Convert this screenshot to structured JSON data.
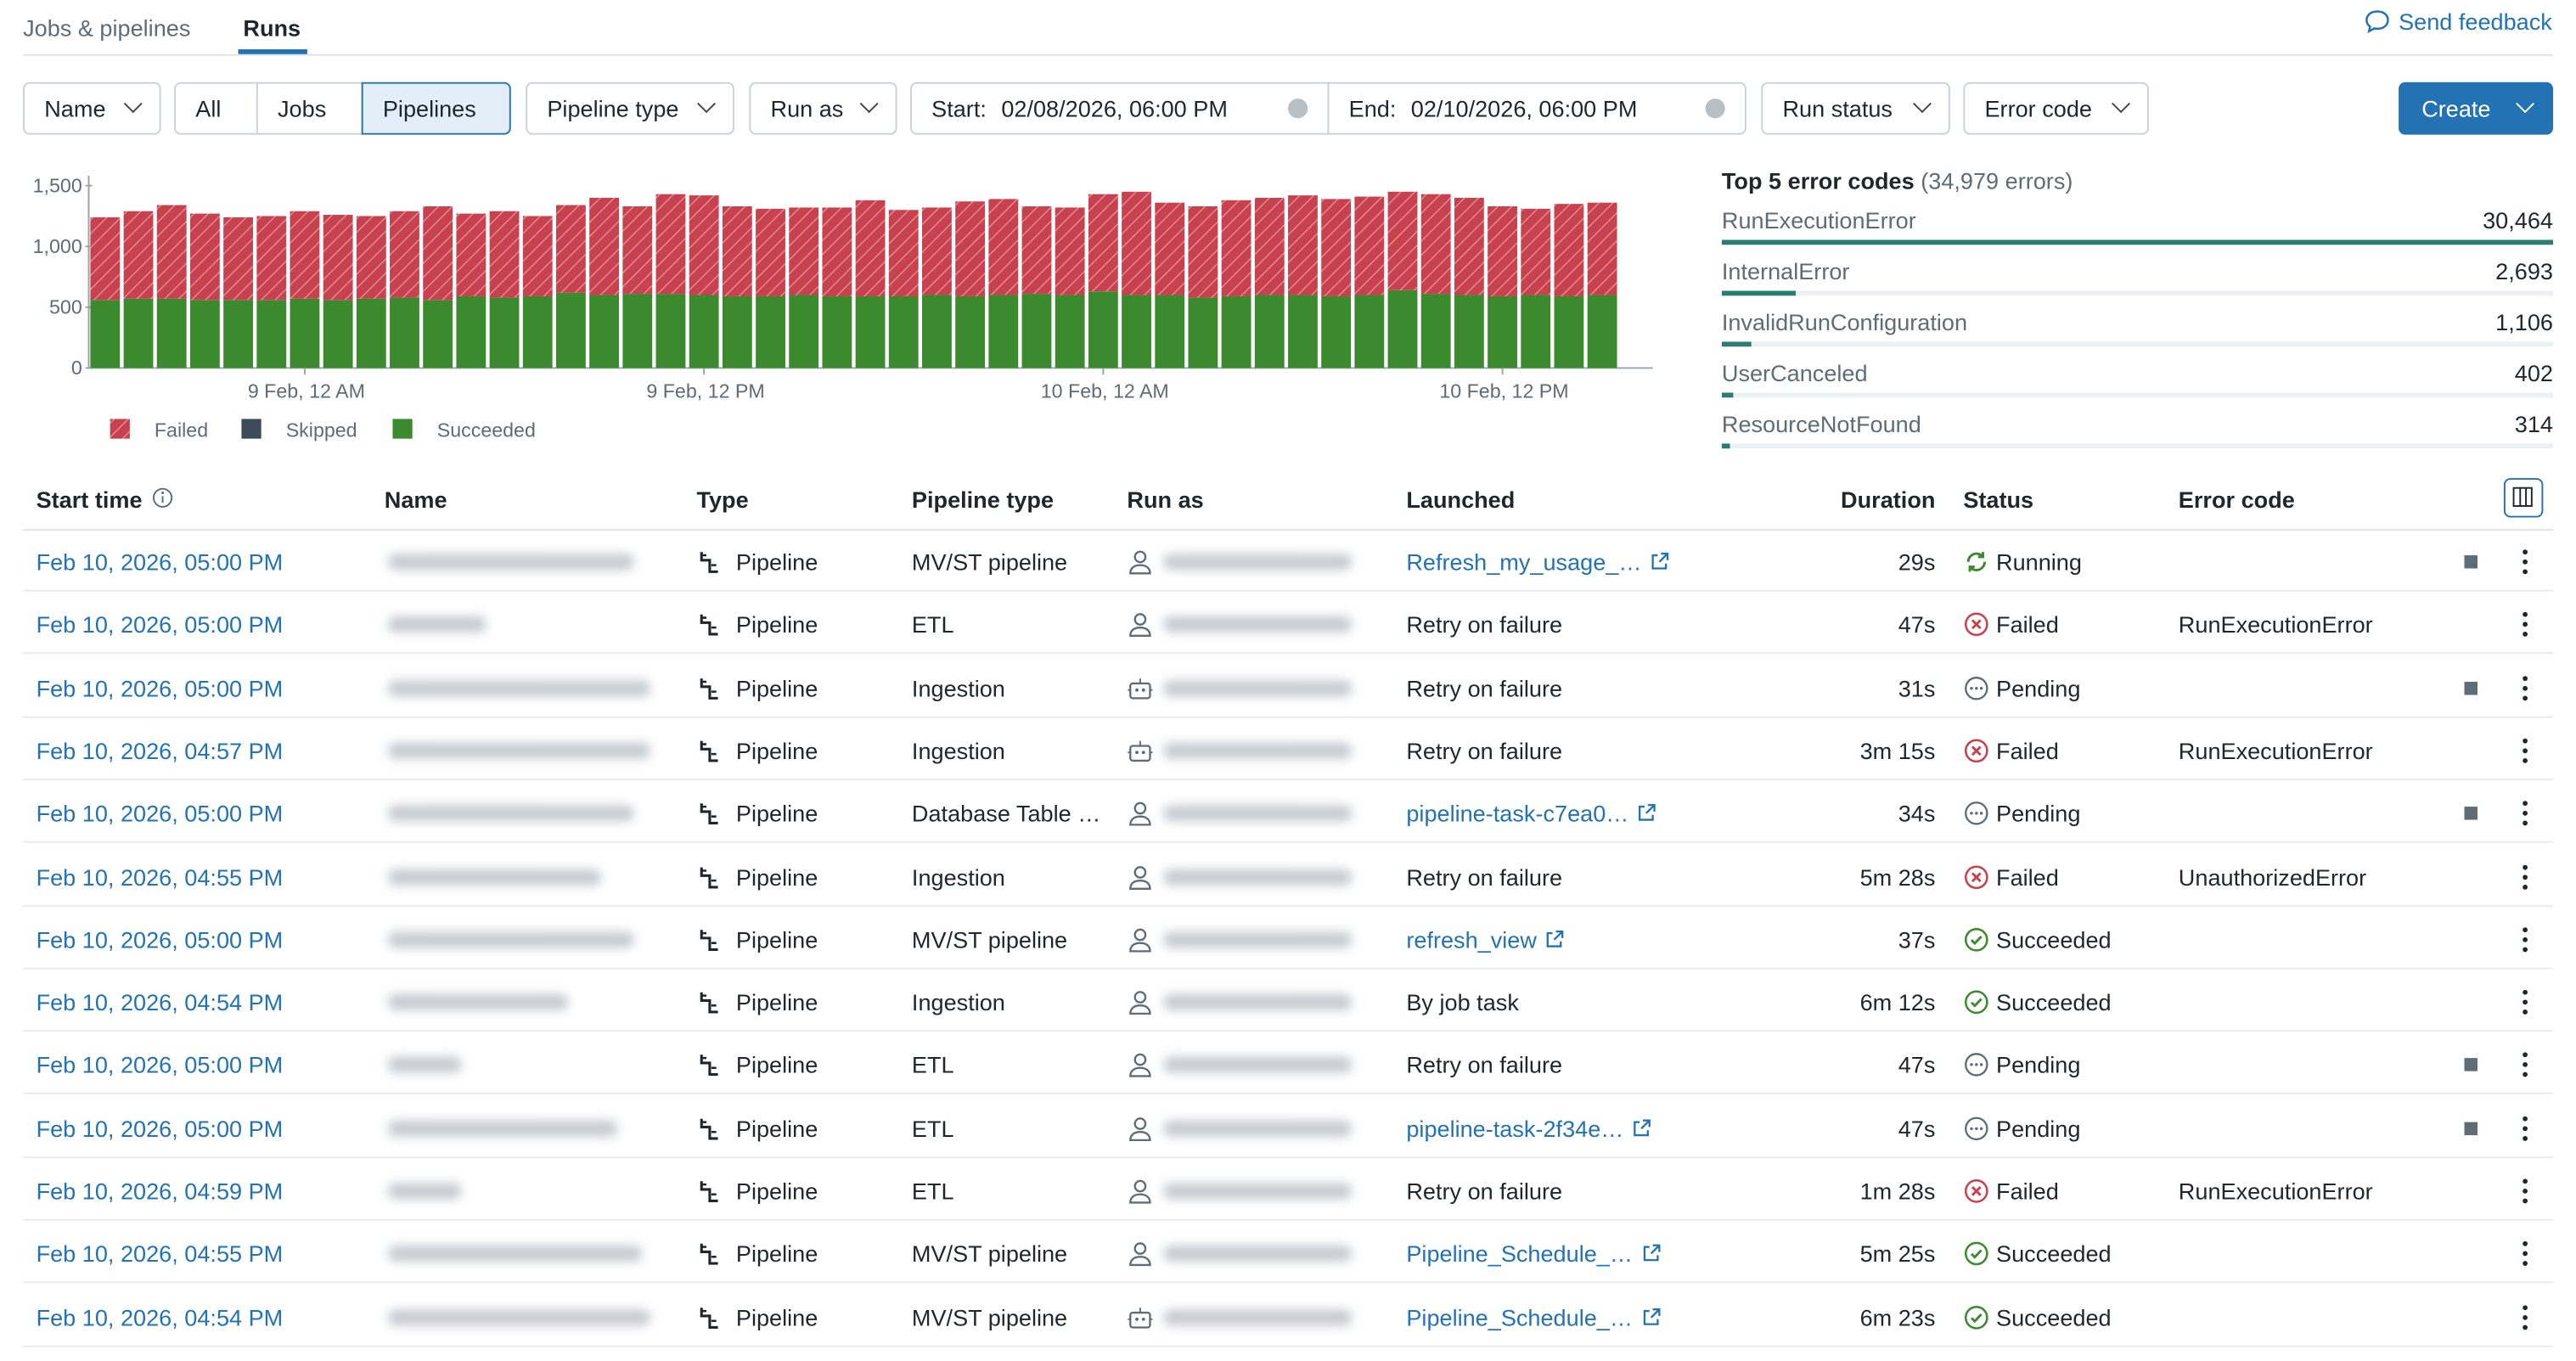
{
  "tabs": [
    "Jobs & pipelines",
    "Runs"
  ],
  "feedback": "Send feedback",
  "filters": {
    "name": "Name",
    "kinds": [
      "All",
      "Jobs",
      "Pipelines"
    ],
    "pipeline_type": "Pipeline type",
    "run_as": "Run as",
    "start_label": "Start:",
    "start_value": "02/08/2026, 06:00 PM",
    "end_label": "End:",
    "end_value": "02/10/2026, 06:00 PM",
    "run_status": "Run status",
    "error_code": "Error code",
    "create": "Create"
  },
  "chart_data": {
    "type": "stacked_bar",
    "categories": [
      null,
      null,
      null,
      null,
      null,
      null,
      "9 Feb, 12 AM",
      null,
      null,
      null,
      null,
      null,
      null,
      null,
      null,
      null,
      null,
      null,
      "9 Feb, 12 PM",
      null,
      null,
      null,
      null,
      null,
      null,
      null,
      null,
      null,
      null,
      null,
      "10 Feb, 12 AM",
      null,
      null,
      null,
      null,
      null,
      null,
      null,
      null,
      null,
      null,
      null,
      "10 Feb, 12 PM",
      null,
      null,
      null
    ],
    "series": [
      {
        "name": "Succeeded",
        "color": "#3c8a2e",
        "hatched": false,
        "values": [
          560,
          570,
          570,
          560,
          560,
          560,
          570,
          560,
          570,
          580,
          560,
          590,
          580,
          590,
          620,
          600,
          610,
          610,
          600,
          590,
          590,
          600,
          590,
          590,
          590,
          600,
          590,
          600,
          610,
          600,
          630,
          600,
          600,
          580,
          590,
          600,
          600,
          590,
          600,
          640,
          610,
          600,
          590,
          600,
          590,
          600
        ]
      },
      {
        "name": "Skipped",
        "color": "#3d4a57",
        "hatched": false,
        "values": [
          0,
          0,
          0,
          0,
          0,
          0,
          0,
          0,
          0,
          0,
          0,
          0,
          0,
          0,
          0,
          0,
          0,
          0,
          0,
          0,
          0,
          0,
          0,
          0,
          0,
          0,
          0,
          0,
          0,
          0,
          0,
          0,
          0,
          0,
          0,
          0,
          0,
          0,
          0,
          0,
          0,
          0,
          0,
          0,
          0,
          0
        ]
      },
      {
        "name": "Failed",
        "color": "#c8414f",
        "hatched": true,
        "values": [
          680,
          720,
          770,
          710,
          680,
          690,
          720,
          700,
          680,
          710,
          770,
          680,
          710,
          660,
          720,
          800,
          720,
          820,
          820,
          740,
          720,
          720,
          730,
          790,
          710,
          720,
          780,
          790,
          720,
          720,
          800,
          850,
          760,
          750,
          790,
          800,
          820,
          800,
          810,
          810,
          820,
          800,
          740,
          710,
          760,
          760
        ]
      }
    ],
    "legend_order": [
      "Failed",
      "Skipped",
      "Succeeded"
    ],
    "ylim": [
      0,
      1500
    ],
    "yticks": [
      0,
      500,
      {
        "value": 1000,
        "label": "1,000"
      },
      {
        "value": 1500,
        "label": "1,500"
      }
    ]
  },
  "error_codes": {
    "title": "Top 5 error codes",
    "subtitle": "(34,979 errors)",
    "color": "#2a7d72",
    "items": [
      {
        "name": "RunExecutionError",
        "count": {
          "value": 30464,
          "label": "30,464"
        }
      },
      {
        "name": "InternalError",
        "count": {
          "value": 2693,
          "label": "2,693"
        }
      },
      {
        "name": "InvalidRunConfiguration",
        "count": {
          "value": 1106,
          "label": "1,106"
        }
      },
      {
        "name": "UserCanceled",
        "count": {
          "value": 402,
          "label": "402"
        }
      },
      {
        "name": "ResourceNotFound",
        "count": {
          "value": 314,
          "label": "314"
        }
      }
    ]
  },
  "table": {
    "headers": [
      "Start time",
      "Name",
      "Type",
      "Pipeline type",
      "Run as",
      "Launched",
      "Duration",
      "Status",
      "Error code"
    ],
    "rows": [
      {
        "start": "Feb 10, 2026, 05:00 PM",
        "type": "Pipeline",
        "pipeline_type": "MV/ST pipeline",
        "service_principal": false,
        "launched": "Refresh_my_usage_…",
        "launched_link": true,
        "duration": "29s",
        "status": "Running",
        "error": null
      },
      {
        "start": "Feb 10, 2026, 05:00 PM",
        "type": "Pipeline",
        "pipeline_type": "ETL",
        "service_principal": false,
        "launched": "Retry on failure",
        "launched_link": false,
        "duration": "47s",
        "status": "Failed",
        "error": "RunExecutionError"
      },
      {
        "start": "Feb 10, 2026, 05:00 PM",
        "type": "Pipeline",
        "pipeline_type": "Ingestion",
        "service_principal": true,
        "launched": "Retry on failure",
        "launched_link": false,
        "duration": "31s",
        "status": "Pending",
        "error": null
      },
      {
        "start": "Feb 10, 2026, 04:57 PM",
        "type": "Pipeline",
        "pipeline_type": "Ingestion",
        "service_principal": true,
        "launched": "Retry on failure",
        "launched_link": false,
        "duration": "3m 15s",
        "status": "Failed",
        "error": "RunExecutionError"
      },
      {
        "start": "Feb 10, 2026, 05:00 PM",
        "type": "Pipeline",
        "pipeline_type": "Database Table …",
        "service_principal": false,
        "launched": "pipeline-task-c7ea0…",
        "launched_link": true,
        "duration": "34s",
        "status": "Pending",
        "error": null
      },
      {
        "start": "Feb 10, 2026, 04:55 PM",
        "type": "Pipeline",
        "pipeline_type": "Ingestion",
        "service_principal": false,
        "launched": "Retry on failure",
        "launched_link": false,
        "duration": "5m 28s",
        "status": "Failed",
        "error": "UnauthorizedError"
      },
      {
        "start": "Feb 10, 2026, 05:00 PM",
        "type": "Pipeline",
        "pipeline_type": "MV/ST pipeline",
        "service_principal": false,
        "launched": "refresh_view",
        "launched_link": true,
        "duration": "37s",
        "status": "Succeeded",
        "error": null
      },
      {
        "start": "Feb 10, 2026, 04:54 PM",
        "type": "Pipeline",
        "pipeline_type": "Ingestion",
        "service_principal": false,
        "launched": "By job task",
        "launched_link": false,
        "duration": "6m 12s",
        "status": "Succeeded",
        "error": null
      },
      {
        "start": "Feb 10, 2026, 05:00 PM",
        "type": "Pipeline",
        "pipeline_type": "ETL",
        "service_principal": false,
        "launched": "Retry on failure",
        "launched_link": false,
        "duration": "47s",
        "status": "Pending",
        "error": null
      },
      {
        "start": "Feb 10, 2026, 05:00 PM",
        "type": "Pipeline",
        "pipeline_type": "ETL",
        "service_principal": false,
        "launched": "pipeline-task-2f34e…",
        "launched_link": true,
        "duration": "47s",
        "status": "Pending",
        "error": null
      },
      {
        "start": "Feb 10, 2026, 04:59 PM",
        "type": "Pipeline",
        "pipeline_type": "ETL",
        "service_principal": false,
        "launched": "Retry on failure",
        "launched_link": false,
        "duration": "1m 28s",
        "status": "Failed",
        "error": "RunExecutionError"
      },
      {
        "start": "Feb 10, 2026, 04:55 PM",
        "type": "Pipeline",
        "pipeline_type": "MV/ST pipeline",
        "service_principal": false,
        "launched": "Pipeline_Schedule_…",
        "launched_link": true,
        "duration": "5m 25s",
        "status": "Succeeded",
        "error": null
      },
      {
        "start": "Feb 10, 2026, 04:54 PM",
        "type": "Pipeline",
        "pipeline_type": "MV/ST pipeline",
        "service_principal": true,
        "launched": "Pipeline_Schedule_…",
        "launched_link": true,
        "duration": "6m 23s",
        "status": "Succeeded",
        "error": null
      }
    ]
  }
}
